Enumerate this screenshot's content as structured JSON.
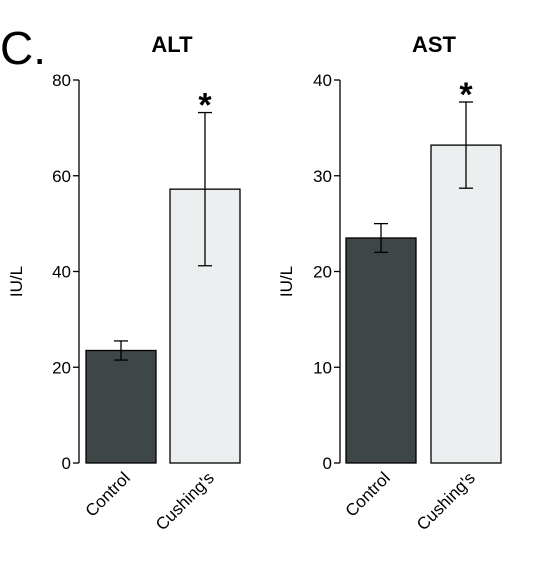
{
  "panel_label": "C.",
  "colors": {
    "control": "#3f4647",
    "cushings": "#eceff0",
    "outline": "#000000"
  },
  "chart_data": [
    {
      "type": "bar",
      "title": "ALT",
      "ylabel": "IU/L",
      "xlabel": "",
      "categories": [
        "Control",
        "Cushing's"
      ],
      "values": [
        23.5,
        57.2
      ],
      "error": [
        2.0,
        16.0
      ],
      "ylim": [
        0,
        80
      ],
      "yticks": [
        "0",
        "20",
        "40",
        "60",
        "80"
      ],
      "annotations": [
        {
          "category": "Cushing's",
          "text": "*"
        }
      ],
      "grid": false
    },
    {
      "type": "bar",
      "title": "AST",
      "ylabel": "IU/L",
      "xlabel": "",
      "categories": [
        "Control",
        "Cushing's"
      ],
      "values": [
        23.5,
        33.2
      ],
      "error": [
        1.5,
        4.5
      ],
      "ylim": [
        0,
        40
      ],
      "yticks": [
        "0",
        "10",
        "20",
        "30",
        "40"
      ],
      "annotations": [
        {
          "category": "Cushing's",
          "text": "*"
        }
      ],
      "grid": false
    }
  ]
}
